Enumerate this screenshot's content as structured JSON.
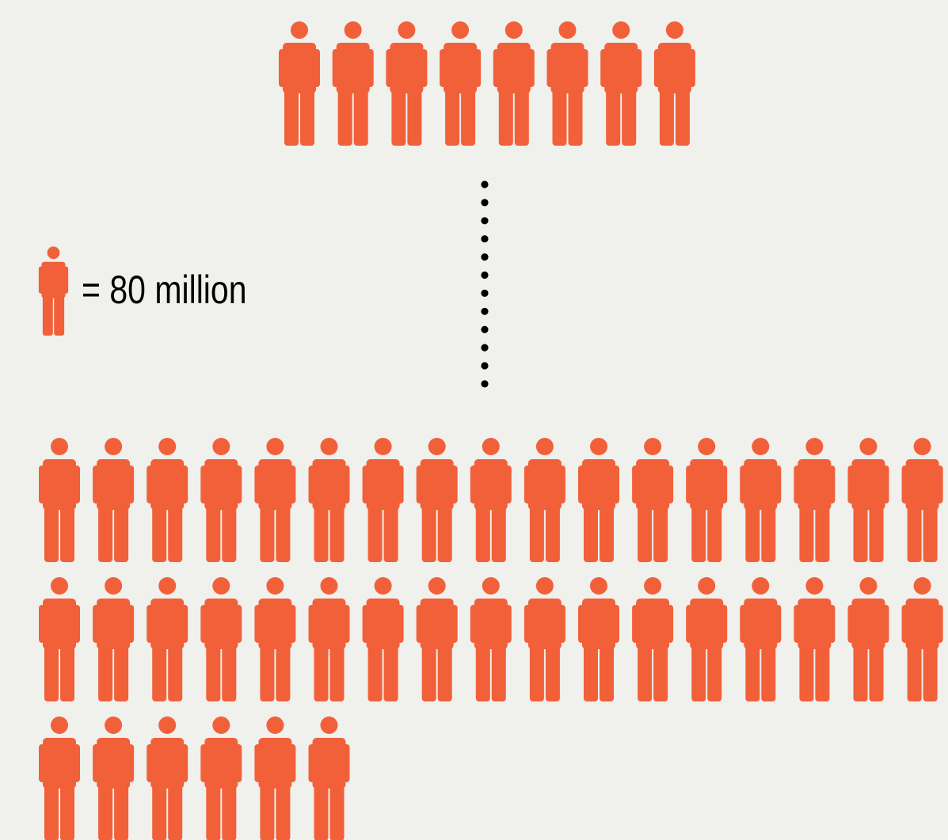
{
  "colors": {
    "background": "#f0f0ec",
    "figure": "#f2603a",
    "dots": "#000000",
    "text": "#000000"
  },
  "icon": "person-icon",
  "legend": {
    "label": "= 80 million"
  },
  "groups": {
    "top": {
      "count": 8
    },
    "bottom": {
      "count": 40
    }
  },
  "separator_dot_count": 12
}
